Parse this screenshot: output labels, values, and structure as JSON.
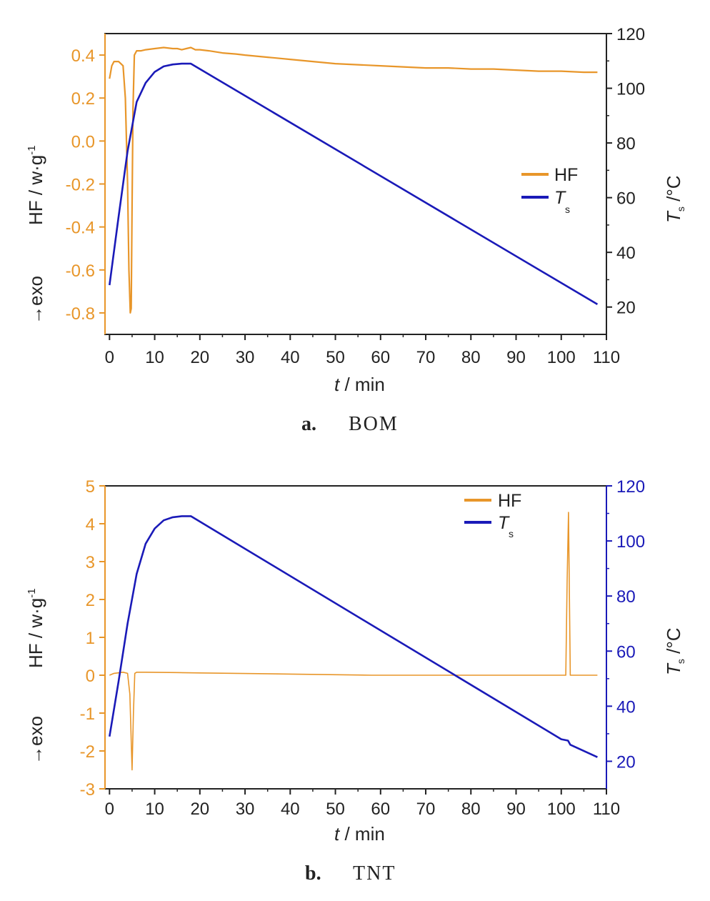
{
  "colors": {
    "hf": "#E8962A",
    "ts": "#1A1AB8",
    "axis_black": "#222222",
    "axis_blue": "#1A1AB8"
  },
  "chart_data": [
    {
      "type": "line",
      "caption_letter": "a.",
      "caption_text": "BOM",
      "xlabel_var": "t",
      "xlabel_unit": " / min",
      "ylabel_left_main": "HF / w·g",
      "ylabel_left_sup": "-1",
      "ylabel_left_exo": "→exo",
      "ylabel_right_var": "T",
      "ylabel_right_sub": "s",
      "ylabel_right_unit": " /°C",
      "xlim": [
        -1,
        110
      ],
      "ylim_left": [
        -0.9,
        0.5
      ],
      "ylim_right": [
        10,
        120
      ],
      "x_ticks": [
        0,
        10,
        20,
        30,
        40,
        50,
        60,
        70,
        80,
        90,
        100,
        110
      ],
      "y_left_ticks": [
        "0.4",
        "0.2",
        "0.0",
        "-0.2",
        "-0.4",
        "-0.6",
        "-0.8"
      ],
      "y_right_ticks": [
        "120",
        "100",
        "80",
        "60",
        "40",
        "20"
      ],
      "right_axis_color": "axis_black",
      "legend": {
        "position": "center-right",
        "entries": [
          {
            "name": "HF",
            "sub": ""
          },
          {
            "name": "T",
            "sub": "s"
          }
        ]
      },
      "series": [
        {
          "name": "HF",
          "axis": "left",
          "x": [
            0,
            0.5,
            1,
            2,
            3,
            3.5,
            4,
            4.3,
            4.6,
            4.8,
            5,
            5.2,
            5.5,
            6,
            7,
            8,
            10,
            12,
            14,
            15,
            16,
            17,
            18,
            19,
            20,
            22,
            25,
            28,
            30,
            35,
            40,
            45,
            50,
            55,
            60,
            65,
            70,
            75,
            80,
            85,
            90,
            95,
            100,
            105,
            108
          ],
          "y": [
            0.29,
            0.35,
            0.37,
            0.37,
            0.35,
            0.2,
            -0.2,
            -0.6,
            -0.8,
            -0.78,
            -0.3,
            0.15,
            0.4,
            0.42,
            0.42,
            0.425,
            0.43,
            0.435,
            0.43,
            0.43,
            0.425,
            0.43,
            0.435,
            0.425,
            0.425,
            0.42,
            0.41,
            0.405,
            0.4,
            0.39,
            0.38,
            0.37,
            0.36,
            0.355,
            0.35,
            0.345,
            0.34,
            0.34,
            0.335,
            0.335,
            0.33,
            0.325,
            0.325,
            0.32,
            0.32
          ]
        },
        {
          "name": "Ts",
          "axis": "right",
          "x": [
            0,
            2,
            4,
            6,
            8,
            10,
            12,
            14,
            16,
            18,
            108
          ],
          "y": [
            28,
            53,
            77,
            95,
            102,
            106,
            108,
            108.7,
            109,
            109,
            21
          ]
        }
      ]
    },
    {
      "type": "line",
      "caption_letter": "b.",
      "caption_text": "TNT",
      "xlabel_var": "t",
      "xlabel_unit": " / min",
      "ylabel_left_main": "HF / w·g",
      "ylabel_left_sup": "-1",
      "ylabel_left_exo": "→exo",
      "ylabel_right_var": "T",
      "ylabel_right_sub": "s",
      "ylabel_right_unit": " /°C",
      "xlim": [
        -1,
        110
      ],
      "ylim_left": [
        -3,
        5
      ],
      "ylim_right": [
        10,
        120
      ],
      "x_ticks": [
        0,
        10,
        20,
        30,
        40,
        50,
        60,
        70,
        80,
        90,
        100,
        110
      ],
      "y_left_ticks": [
        "5",
        "4",
        "3",
        "2",
        "1",
        "0",
        "-1",
        "-2",
        "-3"
      ],
      "y_right_ticks": [
        "120",
        "100",
        "80",
        "60",
        "40",
        "20"
      ],
      "right_axis_color": "axis_blue",
      "legend": {
        "position": "top-right",
        "entries": [
          {
            "name": "HF",
            "sub": ""
          },
          {
            "name": "T",
            "sub": "s"
          }
        ]
      },
      "series": [
        {
          "name": "HF",
          "axis": "left",
          "x": [
            0,
            1,
            3,
            4,
            4.5,
            5,
            5.3,
            5.6,
            6,
            8,
            15,
            20,
            40,
            58,
            80,
            100,
            101,
            101.3,
            101.6,
            102,
            103,
            108
          ],
          "y": [
            0.0,
            0.05,
            0.08,
            0.05,
            -0.5,
            -2.5,
            -1.0,
            0.05,
            0.08,
            0.08,
            0.07,
            0.06,
            0.03,
            0.0,
            0.0,
            0.0,
            0.0,
            2.5,
            4.3,
            0.0,
            0.0,
            0.0
          ]
        },
        {
          "name": "Ts",
          "axis": "right",
          "x": [
            0,
            2,
            4,
            6,
            8,
            10,
            12,
            14,
            16,
            18,
            100,
            101.5,
            102,
            108
          ],
          "y": [
            29,
            49,
            70,
            88,
            99,
            104.5,
            107.5,
            108.6,
            109,
            109,
            28,
            27.5,
            26,
            21.5
          ]
        }
      ]
    }
  ]
}
